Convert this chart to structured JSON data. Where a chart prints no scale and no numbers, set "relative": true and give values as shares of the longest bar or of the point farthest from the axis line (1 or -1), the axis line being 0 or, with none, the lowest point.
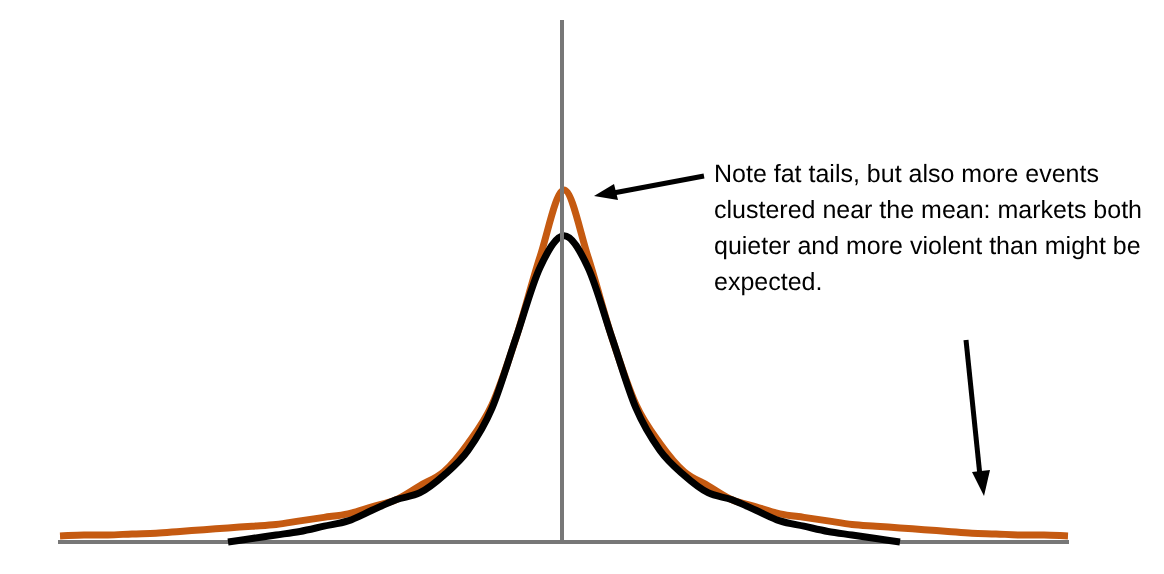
{
  "chart_data": {
    "type": "line",
    "relative": true,
    "tick_labels": false,
    "grid": false,
    "legend": false,
    "marker": "none",
    "categories": [
      null,
      null,
      null,
      null,
      null,
      null,
      null,
      null,
      null,
      null,
      null,
      null,
      null,
      null,
      null,
      null,
      null,
      null,
      null,
      null,
      null,
      null,
      null,
      null,
      null,
      null,
      null,
      null,
      null,
      null,
      null,
      null,
      null,
      null,
      null,
      null,
      null,
      null,
      null,
      null,
      null,
      null,
      null
    ],
    "series": [
      {
        "color": "#000000",
        "values": [
          null,
          null,
          null,
          null,
          null,
          null,
          null,
          0,
          0.01,
          0.02,
          0.03,
          0.045,
          0.06,
          0.09,
          0.12,
          0.14,
          0.19,
          0.26,
          0.38,
          0.58,
          0.78,
          0.87,
          0.78,
          0.58,
          0.38,
          0.26,
          0.19,
          0.14,
          0.12,
          0.09,
          0.06,
          0.045,
          0.03,
          0.02,
          0.01,
          0,
          null,
          null,
          null,
          null,
          null,
          null,
          null
        ]
      },
      {
        "color": "#c55a11",
        "values": [
          0.017,
          0.02,
          0.02,
          0.023,
          0.025,
          0.03,
          0.035,
          0.04,
          0.045,
          0.05,
          0.06,
          0.07,
          0.08,
          0.1,
          0.12,
          0.16,
          0.2,
          0.28,
          0.39,
          0.58,
          0.81,
          1,
          0.81,
          0.58,
          0.39,
          0.28,
          0.2,
          0.16,
          0.12,
          0.1,
          0.08,
          0.07,
          0.06,
          0.05,
          0.045,
          0.04,
          0.035,
          0.03,
          0.025,
          0.023,
          0.02,
          0.02,
          0.017
        ]
      }
    ],
    "annotations": [
      "Note fat tails, but also more events clustered near the mean: markets both quieter and more violent than might be expected."
    ]
  }
}
